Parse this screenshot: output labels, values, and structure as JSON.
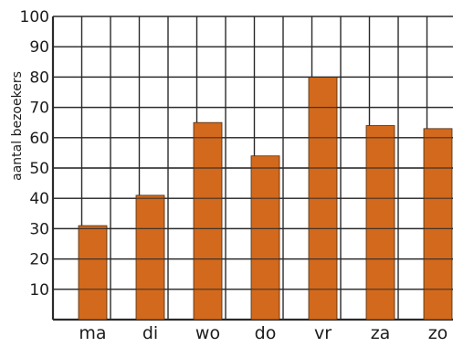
{
  "chart_data": {
    "type": "bar",
    "ylabel": "aantal bezoekers",
    "xlabel": "",
    "ylim": [
      0,
      100
    ],
    "y_ticks": [
      10,
      20,
      30,
      40,
      50,
      60,
      70,
      80,
      90,
      100
    ],
    "grid": "on",
    "categories": [
      "ma",
      "di",
      "wo",
      "do",
      "vr",
      "za",
      "zo"
    ],
    "values": [
      31,
      41,
      65,
      54,
      80,
      64,
      63
    ],
    "bar_color": "#d2691c",
    "grid_color": "#2a2a2a"
  }
}
